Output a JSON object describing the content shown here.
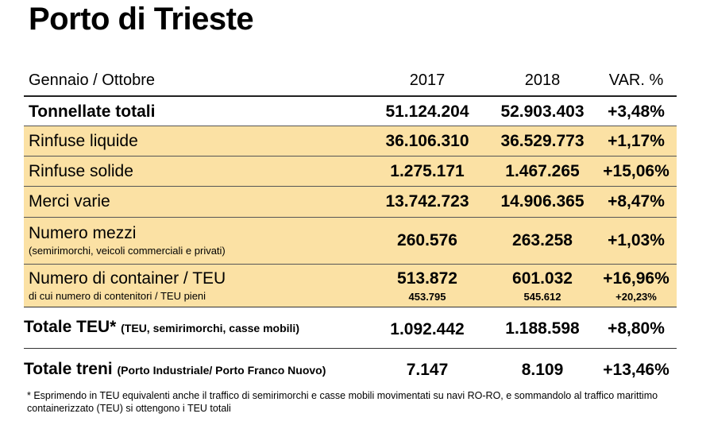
{
  "title": "Porto di Trieste",
  "header": {
    "period": "Gennaio / Ottobre",
    "col_2017": "2017",
    "col_2018": "2018",
    "col_var": "VAR. %"
  },
  "rows": [
    {
      "label": "Tonnellate totali",
      "v2017": "51.124.204",
      "v2018": "52.903.403",
      "var": "+3,48%"
    },
    {
      "label": "Rinfuse liquide",
      "v2017": "36.106.310",
      "v2018": "36.529.773",
      "var": "+1,17%"
    },
    {
      "label": "Rinfuse solide",
      "v2017": "1.275.171",
      "v2018": "1.467.265",
      "var": "+15,06%"
    },
    {
      "label": "Merci varie",
      "v2017": "13.742.723",
      "v2018": "14.906.365",
      "var": "+8,47%"
    },
    {
      "label": "Numero mezzi",
      "sublabel": "(semirimorchi, veicoli commerciali e privati)",
      "v2017": "260.576",
      "v2018": "263.258",
      "var": "+1,03%"
    },
    {
      "label": "Numero di container / TEU",
      "sublabel": "di cui numero di contenitori / TEU pieni",
      "v2017": "513.872",
      "v2018": "601.032",
      "var": "+16,96%",
      "sub_v2017": "453.795",
      "sub_v2018": "545.612",
      "sub_var": "+20,23%"
    }
  ],
  "totale_teu": {
    "label": "Totale TEU*",
    "note": "(TEU, semirimorchi, casse mobili)",
    "v2017": "1.092.442",
    "v2018": "1.188.598",
    "var": "+8,80%"
  },
  "totale_treni": {
    "label": "Totale treni",
    "note": "(Porto Industriale/ Porto Franco Nuovo)",
    "v2017": "7.147",
    "v2018": "8.109",
    "var": "+13,46%"
  },
  "footnote": "* Esprimendo in TEU equivalenti anche il traffico di semirimorchi e casse mobili movimentati su navi RO-RO, e sommandolo al traffico marittimo containerizzato (TEU) si ottengono i TEU totali",
  "colors": {
    "highlight": "#fbe1a4"
  }
}
